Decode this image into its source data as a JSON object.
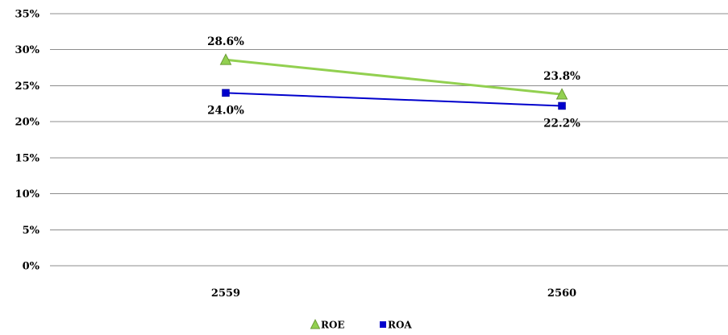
{
  "chart_data": {
    "type": "line",
    "title": "",
    "xlabel": "",
    "ylabel": "",
    "categories": [
      "2559",
      "2560"
    ],
    "ylim": [
      0,
      0.35
    ],
    "yticks": [
      {
        "value": 0,
        "label": "0%"
      },
      {
        "value": 0.05,
        "label": "5%"
      },
      {
        "value": 0.1,
        "label": "10%"
      },
      {
        "value": 0.15,
        "label": "15%"
      },
      {
        "value": 0.2,
        "label": "20%"
      },
      {
        "value": 0.25,
        "label": "25%"
      },
      {
        "value": 0.3,
        "label": "30%"
      },
      {
        "value": 0.35,
        "label": "35%"
      }
    ],
    "grid": true,
    "legend_position": "bottom",
    "series": [
      {
        "name": "ROE",
        "values": [
          0.286,
          0.238
        ],
        "labels": [
          "28.6%",
          "23.8%"
        ],
        "color": "#92D050",
        "marker": "triangle",
        "label_position": "above"
      },
      {
        "name": "ROA",
        "values": [
          0.24,
          0.222
        ],
        "labels": [
          "24.0%",
          "22.2%"
        ],
        "color": "#0000CC",
        "marker": "square",
        "label_position": "below"
      }
    ]
  }
}
